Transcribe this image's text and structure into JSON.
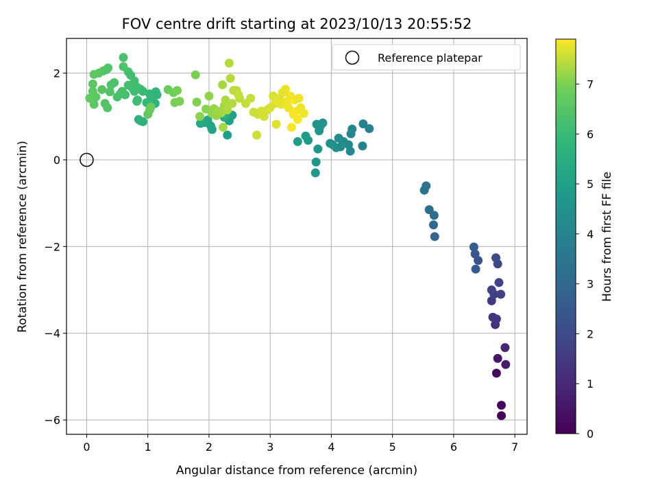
{
  "chart_data": {
    "type": "scatter",
    "title": "FOV centre drift starting at 2023/10/13 20:55:52",
    "xlabel": "Angular distance from reference (arcmin)",
    "ylabel": "Rotation from reference (arcmin)",
    "xlim": [
      -0.33,
      7.2
    ],
    "ylim": [
      -6.33,
      2.8
    ],
    "xticks": [
      0,
      1,
      2,
      3,
      4,
      5,
      6,
      7
    ],
    "xtick_labels": [
      "0",
      "1",
      "2",
      "3",
      "4",
      "5",
      "6",
      "7"
    ],
    "yticks": [
      -6,
      -4,
      -2,
      0,
      2
    ],
    "ytick_labels": [
      "−6",
      "−4",
      "−2",
      "0",
      "2"
    ],
    "grid": true,
    "legend": {
      "position": "top-right",
      "entries": [
        "Reference platepar"
      ]
    },
    "reference_point": {
      "x": 0,
      "y": 0,
      "label": "Reference platepar"
    },
    "colorbar": {
      "label": "Hours from first FF file",
      "colormap": "viridis",
      "range": [
        0,
        7.9
      ],
      "ticks": [
        0,
        1,
        2,
        3,
        4,
        5,
        6,
        7
      ],
      "tick_labels": [
        "0",
        "1",
        "2",
        "3",
        "4",
        "5",
        "6",
        "7"
      ]
    },
    "points": [
      {
        "x": 6.78,
        "y": -5.9,
        "t": 0.1
      },
      {
        "x": 6.78,
        "y": -5.66,
        "t": 0.2
      },
      {
        "x": 6.7,
        "y": -4.92,
        "t": 0.3
      },
      {
        "x": 6.72,
        "y": -4.58,
        "t": 0.5
      },
      {
        "x": 6.85,
        "y": -4.72,
        "t": 0.7
      },
      {
        "x": 6.84,
        "y": -4.33,
        "t": 0.9
      },
      {
        "x": 6.68,
        "y": -3.8,
        "t": 1.2
      },
      {
        "x": 6.64,
        "y": -3.63,
        "t": 1.35
      },
      {
        "x": 6.7,
        "y": -3.67,
        "t": 1.45
      },
      {
        "x": 6.62,
        "y": -3.25,
        "t": 1.55
      },
      {
        "x": 6.66,
        "y": -3.1,
        "t": 1.65
      },
      {
        "x": 6.62,
        "y": -3.0,
        "t": 1.75
      },
      {
        "x": 6.77,
        "y": -3.1,
        "t": 1.7
      },
      {
        "x": 6.74,
        "y": -2.83,
        "t": 1.8
      },
      {
        "x": 6.72,
        "y": -2.4,
        "t": 1.9
      },
      {
        "x": 6.69,
        "y": -2.26,
        "t": 2.0
      },
      {
        "x": 6.4,
        "y": -2.32,
        "t": 2.25
      },
      {
        "x": 6.35,
        "y": -2.17,
        "t": 2.4
      },
      {
        "x": 6.36,
        "y": -2.52,
        "t": 2.5
      },
      {
        "x": 6.33,
        "y": -2.01,
        "t": 2.6
      },
      {
        "x": 5.69,
        "y": -1.77,
        "t": 2.9
      },
      {
        "x": 5.67,
        "y": -1.5,
        "t": 3.0
      },
      {
        "x": 5.68,
        "y": -1.28,
        "t": 3.1
      },
      {
        "x": 5.6,
        "y": -1.15,
        "t": 3.2
      },
      {
        "x": 5.52,
        "y": -0.7,
        "t": 3.3
      },
      {
        "x": 5.55,
        "y": -0.6,
        "t": 3.35
      },
      {
        "x": 4.62,
        "y": 0.72,
        "t": 3.9
      },
      {
        "x": 4.52,
        "y": 0.83,
        "t": 3.95
      },
      {
        "x": 4.51,
        "y": 0.32,
        "t": 4.0
      },
      {
        "x": 4.34,
        "y": 0.71,
        "t": 4.05
      },
      {
        "x": 4.32,
        "y": 0.6,
        "t": 4.1
      },
      {
        "x": 4.31,
        "y": 0.2,
        "t": 4.15
      },
      {
        "x": 4.28,
        "y": 0.35,
        "t": 4.2
      },
      {
        "x": 4.2,
        "y": 0.42,
        "t": 4.25
      },
      {
        "x": 4.15,
        "y": 0.3,
        "t": 4.3
      },
      {
        "x": 4.12,
        "y": 0.5,
        "t": 4.3
      },
      {
        "x": 4.08,
        "y": 0.28,
        "t": 4.35
      },
      {
        "x": 4.02,
        "y": 0.35,
        "t": 4.4
      },
      {
        "x": 3.98,
        "y": 0.38,
        "t": 4.45
      },
      {
        "x": 3.86,
        "y": 0.85,
        "t": 4.5
      },
      {
        "x": 3.82,
        "y": 0.78,
        "t": 4.55
      },
      {
        "x": 3.8,
        "y": 0.67,
        "t": 4.6
      },
      {
        "x": 3.76,
        "y": 0.82,
        "t": 4.6
      },
      {
        "x": 3.78,
        "y": 0.25,
        "t": 4.65
      },
      {
        "x": 3.75,
        "y": -0.05,
        "t": 4.7
      },
      {
        "x": 3.74,
        "y": -0.3,
        "t": 4.75
      },
      {
        "x": 3.62,
        "y": 0.45,
        "t": 4.8
      },
      {
        "x": 3.58,
        "y": 0.55,
        "t": 4.85
      },
      {
        "x": 3.45,
        "y": 0.42,
        "t": 4.9
      },
      {
        "x": 2.3,
        "y": 0.57,
        "t": 4.95
      },
      {
        "x": 2.33,
        "y": 0.9,
        "t": 5.0
      },
      {
        "x": 2.38,
        "y": 1.03,
        "t": 5.05
      },
      {
        "x": 2.05,
        "y": 0.7,
        "t": 5.1
      },
      {
        "x": 2.03,
        "y": 0.78,
        "t": 5.15
      },
      {
        "x": 1.98,
        "y": 0.92,
        "t": 5.2
      },
      {
        "x": 1.93,
        "y": 0.86,
        "t": 5.25
      },
      {
        "x": 1.86,
        "y": 0.84,
        "t": 5.3
      },
      {
        "x": 2.28,
        "y": 1.05,
        "t": 5.35
      },
      {
        "x": 2.25,
        "y": 0.98,
        "t": 5.4
      },
      {
        "x": 0.92,
        "y": 0.88,
        "t": 5.6
      },
      {
        "x": 0.85,
        "y": 0.93,
        "t": 5.65
      },
      {
        "x": 0.88,
        "y": 0.9,
        "t": 5.7
      },
      {
        "x": 1.12,
        "y": 1.3,
        "t": 5.75
      },
      {
        "x": 1.15,
        "y": 1.5,
        "t": 5.8
      },
      {
        "x": 1.13,
        "y": 1.57,
        "t": 5.8
      },
      {
        "x": 1.05,
        "y": 1.42,
        "t": 5.85
      },
      {
        "x": 1.03,
        "y": 1.52,
        "t": 5.9
      },
      {
        "x": 0.98,
        "y": 1.32,
        "t": 5.95
      },
      {
        "x": 0.92,
        "y": 1.58,
        "t": 6.0
      },
      {
        "x": 0.88,
        "y": 1.63,
        "t": 6.0
      },
      {
        "x": 0.83,
        "y": 1.38,
        "t": 6.05
      },
      {
        "x": 0.78,
        "y": 1.58,
        "t": 6.1
      },
      {
        "x": 0.75,
        "y": 1.65,
        "t": 6.1
      },
      {
        "x": 0.72,
        "y": 1.7,
        "t": 6.15
      },
      {
        "x": 0.68,
        "y": 1.72,
        "t": 6.2
      },
      {
        "x": 0.63,
        "y": 1.5,
        "t": 6.2
      },
      {
        "x": 0.58,
        "y": 1.58,
        "t": 6.25
      },
      {
        "x": 0.55,
        "y": 1.52,
        "t": 6.3
      },
      {
        "x": 0.5,
        "y": 1.45,
        "t": 6.3
      },
      {
        "x": 0.45,
        "y": 1.78,
        "t": 6.35
      },
      {
        "x": 0.4,
        "y": 1.73,
        "t": 6.4
      },
      {
        "x": 0.38,
        "y": 1.57,
        "t": 6.4
      },
      {
        "x": 0.34,
        "y": 1.2,
        "t": 6.45
      },
      {
        "x": 0.3,
        "y": 1.3,
        "t": 6.45
      },
      {
        "x": 0.27,
        "y": 2.05,
        "t": 6.5
      },
      {
        "x": 0.25,
        "y": 1.62,
        "t": 6.5
      },
      {
        "x": 0.2,
        "y": 2.0,
        "t": 6.55
      },
      {
        "x": 0.15,
        "y": 1.45,
        "t": 6.55
      },
      {
        "x": 0.12,
        "y": 1.28,
        "t": 6.6
      },
      {
        "x": 0.1,
        "y": 1.75,
        "t": 6.6
      },
      {
        "x": 0.1,
        "y": 1.58,
        "t": 6.65
      },
      {
        "x": 0.05,
        "y": 1.42,
        "t": 6.7
      },
      {
        "x": 0.12,
        "y": 1.97,
        "t": 6.6
      },
      {
        "x": 0.35,
        "y": 2.12,
        "t": 6.45
      },
      {
        "x": 0.32,
        "y": 2.08,
        "t": 6.45
      },
      {
        "x": 0.6,
        "y": 2.36,
        "t": 6.3
      },
      {
        "x": 0.6,
        "y": 2.15,
        "t": 6.35
      },
      {
        "x": 0.68,
        "y": 2.03,
        "t": 6.25
      },
      {
        "x": 0.72,
        "y": 1.95,
        "t": 6.2
      },
      {
        "x": 0.78,
        "y": 1.82,
        "t": 6.2
      },
      {
        "x": 0.82,
        "y": 1.68,
        "t": 6.15
      },
      {
        "x": 0.82,
        "y": 1.35,
        "t": 6.1
      },
      {
        "x": 1.0,
        "y": 1.05,
        "t": 6.7
      },
      {
        "x": 1.03,
        "y": 1.15,
        "t": 6.75
      },
      {
        "x": 1.05,
        "y": 1.22,
        "t": 6.8
      },
      {
        "x": 1.33,
        "y": 1.62,
        "t": 6.85
      },
      {
        "x": 1.42,
        "y": 1.55,
        "t": 6.9
      },
      {
        "x": 1.48,
        "y": 1.6,
        "t": 6.95
      },
      {
        "x": 1.44,
        "y": 1.32,
        "t": 6.95
      },
      {
        "x": 1.52,
        "y": 1.35,
        "t": 7.0
      },
      {
        "x": 1.78,
        "y": 1.96,
        "t": 7.0
      },
      {
        "x": 1.8,
        "y": 1.33,
        "t": 7.05
      },
      {
        "x": 1.85,
        "y": 1.0,
        "t": 7.1
      },
      {
        "x": 1.95,
        "y": 1.17,
        "t": 7.1
      },
      {
        "x": 2.0,
        "y": 1.47,
        "t": 7.15
      },
      {
        "x": 2.05,
        "y": 1.07,
        "t": 7.15
      },
      {
        "x": 2.08,
        "y": 1.18,
        "t": 7.2
      },
      {
        "x": 2.12,
        "y": 1.02,
        "t": 7.2
      },
      {
        "x": 2.15,
        "y": 1.12,
        "t": 7.25
      },
      {
        "x": 2.2,
        "y": 1.08,
        "t": 7.25
      },
      {
        "x": 2.22,
        "y": 1.73,
        "t": 7.3
      },
      {
        "x": 2.23,
        "y": 0.75,
        "t": 7.3
      },
      {
        "x": 2.25,
        "y": 1.25,
        "t": 7.3
      },
      {
        "x": 2.27,
        "y": 1.38,
        "t": 7.35
      },
      {
        "x": 2.3,
        "y": 1.15,
        "t": 7.35
      },
      {
        "x": 2.33,
        "y": 2.23,
        "t": 7.4
      },
      {
        "x": 2.35,
        "y": 1.88,
        "t": 7.4
      },
      {
        "x": 2.38,
        "y": 1.3,
        "t": 7.4
      },
      {
        "x": 2.4,
        "y": 1.6,
        "t": 7.45
      },
      {
        "x": 2.45,
        "y": 1.6,
        "t": 7.45
      },
      {
        "x": 2.5,
        "y": 1.42,
        "t": 7.45
      },
      {
        "x": 2.48,
        "y": 1.5,
        "t": 7.5
      },
      {
        "x": 2.6,
        "y": 1.3,
        "t": 7.5
      },
      {
        "x": 2.68,
        "y": 1.42,
        "t": 7.5
      },
      {
        "x": 2.73,
        "y": 1.1,
        "t": 7.55
      },
      {
        "x": 2.78,
        "y": 0.57,
        "t": 7.55
      },
      {
        "x": 2.8,
        "y": 1.05,
        "t": 7.55
      },
      {
        "x": 2.85,
        "y": 1.12,
        "t": 7.6
      },
      {
        "x": 2.9,
        "y": 1.0,
        "t": 7.6
      },
      {
        "x": 2.95,
        "y": 1.15,
        "t": 7.6
      },
      {
        "x": 3.0,
        "y": 1.2,
        "t": 7.65
      },
      {
        "x": 3.05,
        "y": 1.47,
        "t": 7.65
      },
      {
        "x": 3.08,
        "y": 1.3,
        "t": 7.7
      },
      {
        "x": 3.1,
        "y": 0.82,
        "t": 7.7
      },
      {
        "x": 3.15,
        "y": 1.42,
        "t": 7.7
      },
      {
        "x": 3.18,
        "y": 1.28,
        "t": 7.75
      },
      {
        "x": 3.2,
        "y": 1.55,
        "t": 7.75
      },
      {
        "x": 3.25,
        "y": 1.63,
        "t": 7.75
      },
      {
        "x": 3.28,
        "y": 1.35,
        "t": 7.8
      },
      {
        "x": 3.3,
        "y": 1.2,
        "t": 7.8
      },
      {
        "x": 3.33,
        "y": 1.47,
        "t": 7.8
      },
      {
        "x": 3.35,
        "y": 0.75,
        "t": 7.85
      },
      {
        "x": 3.38,
        "y": 1.05,
        "t": 7.85
      },
      {
        "x": 3.4,
        "y": 1.38,
        "t": 7.85
      },
      {
        "x": 3.42,
        "y": 1.12,
        "t": 7.85
      },
      {
        "x": 3.45,
        "y": 0.93,
        "t": 7.85
      },
      {
        "x": 3.47,
        "y": 1.42,
        "t": 7.8
      },
      {
        "x": 3.5,
        "y": 1.2,
        "t": 7.8
      },
      {
        "x": 3.55,
        "y": 1.07,
        "t": 7.8
      }
    ]
  }
}
